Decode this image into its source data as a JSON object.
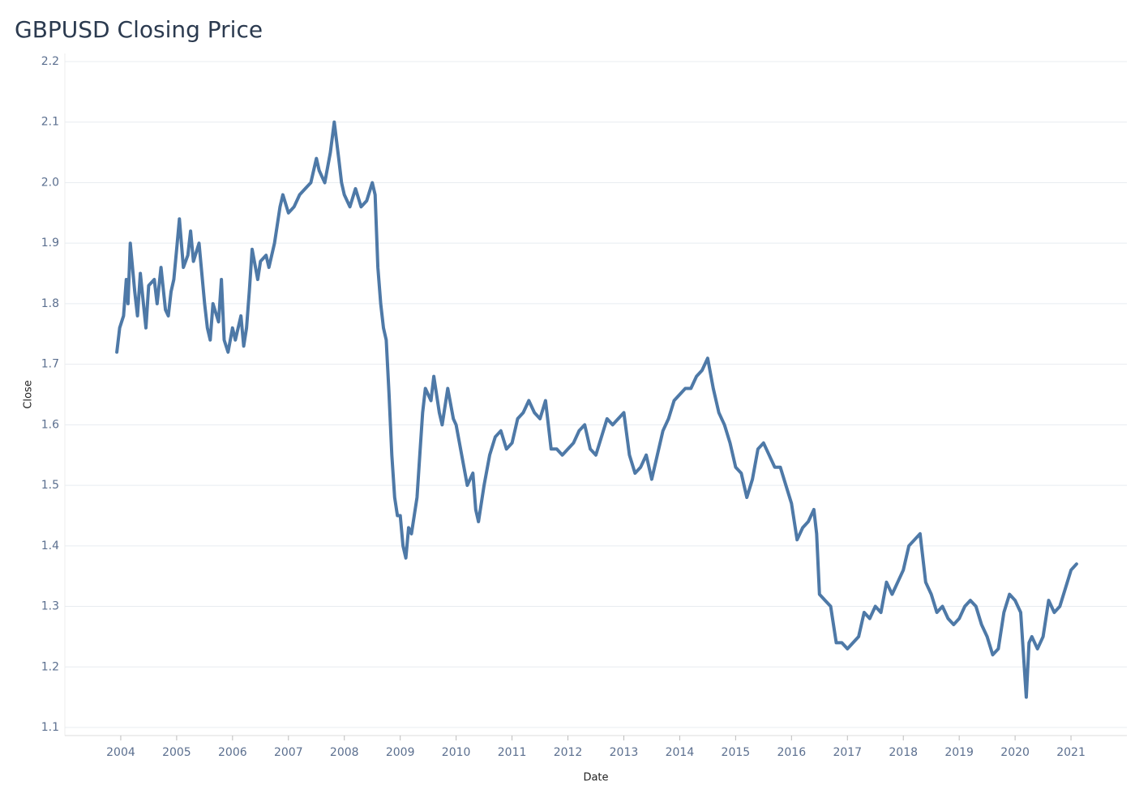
{
  "chart_data": {
    "type": "line",
    "title": "GBPUSD Closing Price",
    "x_label": "Date",
    "y_label": "Close",
    "color": "#4e79a7",
    "grid": true,
    "xlim": [
      2003,
      2022
    ],
    "xticks": [
      2004,
      2005,
      2006,
      2007,
      2008,
      2009,
      2010,
      2011,
      2012,
      2013,
      2014,
      2015,
      2016,
      2017,
      2018,
      2019,
      2020,
      2021
    ],
    "ylim": [
      1.1,
      2.2
    ],
    "yticks": [
      1.1,
      1.2,
      1.3,
      1.4,
      1.5,
      1.6,
      1.7,
      1.8,
      1.9,
      {
        "value": 2,
        "label": "2.0"
      },
      2.1,
      2.2
    ],
    "x": [
      2003.93,
      2003.98,
      2004.05,
      2004.1,
      2004.13,
      2004.17,
      2004.25,
      2004.3,
      2004.35,
      2004.45,
      2004.5,
      2004.6,
      2004.65,
      2004.72,
      2004.8,
      2004.85,
      2004.9,
      2004.95,
      2005.0,
      2005.05,
      2005.12,
      2005.2,
      2005.25,
      2005.3,
      2005.4,
      2005.5,
      2005.55,
      2005.6,
      2005.65,
      2005.75,
      2005.8,
      2005.85,
      2005.92,
      2006.0,
      2006.05,
      2006.15,
      2006.2,
      2006.25,
      2006.3,
      2006.35,
      2006.45,
      2006.5,
      2006.6,
      2006.65,
      2006.75,
      2006.85,
      2006.9,
      2007.0,
      2007.1,
      2007.2,
      2007.3,
      2007.4,
      2007.5,
      2007.55,
      2007.65,
      2007.75,
      2007.82,
      2007.9,
      2007.95,
      2008.0,
      2008.1,
      2008.2,
      2008.3,
      2008.4,
      2008.5,
      2008.55,
      2008.6,
      2008.65,
      2008.7,
      2008.75,
      2008.8,
      2008.85,
      2008.9,
      2008.95,
      2009.0,
      2009.05,
      2009.1,
      2009.15,
      2009.2,
      2009.3,
      2009.35,
      2009.4,
      2009.45,
      2009.55,
      2009.6,
      2009.7,
      2009.75,
      2009.85,
      2009.95,
      2010.0,
      2010.1,
      2010.2,
      2010.3,
      2010.35,
      2010.4,
      2010.5,
      2010.6,
      2010.7,
      2010.8,
      2010.9,
      2011.0,
      2011.1,
      2011.2,
      2011.3,
      2011.4,
      2011.5,
      2011.6,
      2011.7,
      2011.8,
      2011.9,
      2012.0,
      2012.1,
      2012.2,
      2012.3,
      2012.4,
      2012.5,
      2012.6,
      2012.7,
      2012.8,
      2012.9,
      2013.0,
      2013.1,
      2013.2,
      2013.3,
      2013.4,
      2013.5,
      2013.6,
      2013.7,
      2013.8,
      2013.9,
      2014.0,
      2014.1,
      2014.2,
      2014.3,
      2014.4,
      2014.5,
      2014.6,
      2014.7,
      2014.8,
      2014.9,
      2015.0,
      2015.1,
      2015.2,
      2015.3,
      2015.4,
      2015.5,
      2015.6,
      2015.7,
      2015.8,
      2015.9,
      2016.0,
      2016.1,
      2016.2,
      2016.3,
      2016.4,
      2016.45,
      2016.5,
      2016.6,
      2016.7,
      2016.8,
      2016.9,
      2017.0,
      2017.1,
      2017.2,
      2017.3,
      2017.4,
      2017.5,
      2017.6,
      2017.7,
      2017.8,
      2017.9,
      2018.0,
      2018.1,
      2018.2,
      2018.3,
      2018.4,
      2018.5,
      2018.6,
      2018.7,
      2018.8,
      2018.9,
      2019.0,
      2019.1,
      2019.2,
      2019.3,
      2019.4,
      2019.5,
      2019.6,
      2019.7,
      2019.8,
      2019.9,
      2020.0,
      2020.1,
      2020.2,
      2020.25,
      2020.3,
      2020.4,
      2020.5,
      2020.6,
      2020.7,
      2020.8,
      2020.9,
      2021.0,
      2021.1
    ],
    "values": [
      1.72,
      1.76,
      1.78,
      1.84,
      1.8,
      1.9,
      1.82,
      1.78,
      1.85,
      1.76,
      1.83,
      1.84,
      1.8,
      1.86,
      1.79,
      1.78,
      1.82,
      1.84,
      1.89,
      1.94,
      1.86,
      1.88,
      1.92,
      1.87,
      1.9,
      1.8,
      1.76,
      1.74,
      1.8,
      1.77,
      1.84,
      1.74,
      1.72,
      1.76,
      1.74,
      1.78,
      1.73,
      1.76,
      1.82,
      1.89,
      1.84,
      1.87,
      1.88,
      1.86,
      1.9,
      1.96,
      1.98,
      1.95,
      1.96,
      1.98,
      1.99,
      2.0,
      2.04,
      2.02,
      2.0,
      2.05,
      2.1,
      2.04,
      2.0,
      1.98,
      1.96,
      1.99,
      1.96,
      1.97,
      2.0,
      1.98,
      1.86,
      1.8,
      1.76,
      1.74,
      1.65,
      1.55,
      1.48,
      1.45,
      1.45,
      1.4,
      1.38,
      1.43,
      1.42,
      1.48,
      1.55,
      1.62,
      1.66,
      1.64,
      1.68,
      1.62,
      1.6,
      1.66,
      1.61,
      1.6,
      1.55,
      1.5,
      1.52,
      1.46,
      1.44,
      1.5,
      1.55,
      1.58,
      1.59,
      1.56,
      1.57,
      1.61,
      1.62,
      1.64,
      1.62,
      1.61,
      1.64,
      1.56,
      1.56,
      1.55,
      1.56,
      1.57,
      1.59,
      1.6,
      1.56,
      1.55,
      1.58,
      1.61,
      1.6,
      1.61,
      1.62,
      1.55,
      1.52,
      1.53,
      1.55,
      1.51,
      1.55,
      1.59,
      1.61,
      1.64,
      1.65,
      1.66,
      1.66,
      1.68,
      1.69,
      1.71,
      1.66,
      1.62,
      1.6,
      1.57,
      1.53,
      1.52,
      1.48,
      1.51,
      1.56,
      1.57,
      1.55,
      1.53,
      1.53,
      1.5,
      1.47,
      1.41,
      1.43,
      1.44,
      1.46,
      1.42,
      1.32,
      1.31,
      1.3,
      1.24,
      1.24,
      1.23,
      1.24,
      1.25,
      1.29,
      1.28,
      1.3,
      1.29,
      1.34,
      1.32,
      1.34,
      1.36,
      1.4,
      1.41,
      1.42,
      1.34,
      1.32,
      1.29,
      1.3,
      1.28,
      1.27,
      1.28,
      1.3,
      1.31,
      1.3,
      1.27,
      1.25,
      1.22,
      1.23,
      1.29,
      1.32,
      1.31,
      1.29,
      1.15,
      1.24,
      1.25,
      1.23,
      1.25,
      1.31,
      1.29,
      1.3,
      1.33,
      1.36,
      1.37
    ]
  }
}
